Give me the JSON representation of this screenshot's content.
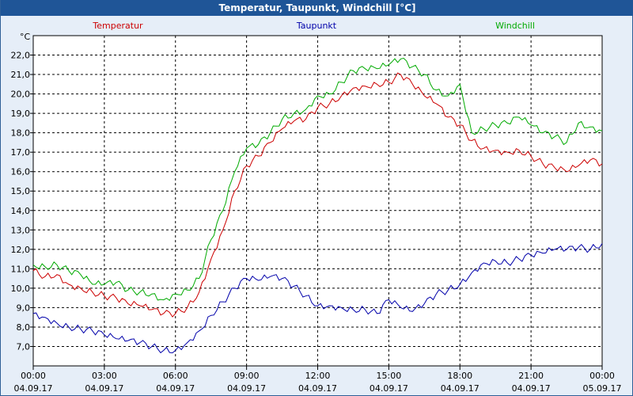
{
  "window": {
    "title": "Temperatur, Taupunkt, Windchill [°C]"
  },
  "chart_data": {
    "type": "line",
    "title": "Temperatur, Taupunkt, Windchill [°C]",
    "ylabel": "°C",
    "ylim": [
      6.0,
      23.0
    ],
    "yticks": [
      "7,0",
      "8,0",
      "9,0",
      "10,0",
      "11,0",
      "12,0",
      "13,0",
      "14,0",
      "15,0",
      "16,0",
      "17,0",
      "18,0",
      "19,0",
      "20,0",
      "21,0",
      "22,0"
    ],
    "xlim": [
      "2017-09-04 00:00",
      "2017-09-05 00:00"
    ],
    "xticks": [
      {
        "time": "00:00",
        "date": "04.09.17"
      },
      {
        "time": "03:00",
        "date": "04.09.17"
      },
      {
        "time": "06:00",
        "date": "04.09.17"
      },
      {
        "time": "09:00",
        "date": "04.09.17"
      },
      {
        "time": "12:00",
        "date": "04.09.17"
      },
      {
        "time": "15:00",
        "date": "04.09.17"
      },
      {
        "time": "18:00",
        "date": "04.09.17"
      },
      {
        "time": "21:00",
        "date": "04.09.17"
      },
      {
        "time": "00:00",
        "date": "05.09.17"
      }
    ],
    "grid": true,
    "legend_position": "top",
    "colors": {
      "Temperatur": "#cc0000",
      "Taupunkt": "#0000aa",
      "Windchill": "#00aa00"
    },
    "series": [
      {
        "name": "Temperatur",
        "color": "#cc0000",
        "points": [
          [
            "00:00",
            10.9
          ],
          [
            "00:30",
            10.6
          ],
          [
            "01:00",
            10.7
          ],
          [
            "01:30",
            10.2
          ],
          [
            "02:00",
            10.0
          ],
          [
            "02:30",
            9.8
          ],
          [
            "03:00",
            9.6
          ],
          [
            "03:30",
            9.5
          ],
          [
            "04:00",
            9.2
          ],
          [
            "04:30",
            9.1
          ],
          [
            "05:00",
            8.9
          ],
          [
            "05:30",
            8.7
          ],
          [
            "06:00",
            8.7
          ],
          [
            "06:30",
            9.0
          ],
          [
            "07:00",
            9.8
          ],
          [
            "07:30",
            11.5
          ],
          [
            "08:00",
            13.0
          ],
          [
            "08:30",
            15.0
          ],
          [
            "09:00",
            16.3
          ],
          [
            "09:30",
            16.8
          ],
          [
            "10:00",
            17.5
          ],
          [
            "10:30",
            18.2
          ],
          [
            "11:00",
            18.6
          ],
          [
            "11:30",
            18.7
          ],
          [
            "12:00",
            19.3
          ],
          [
            "12:30",
            19.5
          ],
          [
            "13:00",
            19.9
          ],
          [
            "13:30",
            20.3
          ],
          [
            "14:00",
            20.4
          ],
          [
            "14:30",
            20.5
          ],
          [
            "15:00",
            20.6
          ],
          [
            "15:30",
            21.0
          ],
          [
            "16:00",
            20.5
          ],
          [
            "16:30",
            19.9
          ],
          [
            "17:00",
            19.5
          ],
          [
            "17:30",
            18.8
          ],
          [
            "18:00",
            18.4
          ],
          [
            "18:30",
            17.6
          ],
          [
            "19:00",
            17.2
          ],
          [
            "19:30",
            17.1
          ],
          [
            "20:00",
            17.0
          ],
          [
            "20:30",
            17.1
          ],
          [
            "21:00",
            16.8
          ],
          [
            "21:30",
            16.4
          ],
          [
            "22:00",
            16.2
          ],
          [
            "22:30",
            16.0
          ],
          [
            "23:00",
            16.3
          ],
          [
            "23:30",
            16.6
          ],
          [
            "24:00",
            16.4
          ]
        ]
      },
      {
        "name": "Taupunkt",
        "color": "#0000aa",
        "points": [
          [
            "00:00",
            8.7
          ],
          [
            "00:30",
            8.5
          ],
          [
            "01:00",
            8.2
          ],
          [
            "01:30",
            8.0
          ],
          [
            "02:00",
            7.9
          ],
          [
            "02:30",
            7.8
          ],
          [
            "03:00",
            7.6
          ],
          [
            "03:30",
            7.4
          ],
          [
            "04:00",
            7.3
          ],
          [
            "04:30",
            7.2
          ],
          [
            "05:00",
            7.0
          ],
          [
            "05:30",
            6.8
          ],
          [
            "06:00",
            6.8
          ],
          [
            "06:30",
            7.2
          ],
          [
            "07:00",
            7.8
          ],
          [
            "07:30",
            8.6
          ],
          [
            "08:00",
            9.3
          ],
          [
            "08:30",
            10.0
          ],
          [
            "09:00",
            10.5
          ],
          [
            "09:30",
            10.4
          ],
          [
            "10:00",
            10.6
          ],
          [
            "10:30",
            10.5
          ],
          [
            "11:00",
            10.1
          ],
          [
            "11:30",
            9.6
          ],
          [
            "12:00",
            9.1
          ],
          [
            "12:30",
            9.1
          ],
          [
            "13:00",
            9.0
          ],
          [
            "13:30",
            8.9
          ],
          [
            "14:00",
            8.9
          ],
          [
            "14:30",
            8.7
          ],
          [
            "15:00",
            9.4
          ],
          [
            "15:30",
            9.0
          ],
          [
            "16:00",
            8.8
          ],
          [
            "16:30",
            9.2
          ],
          [
            "17:00",
            9.7
          ],
          [
            "17:30",
            9.9
          ],
          [
            "18:00",
            10.2
          ],
          [
            "18:30",
            10.8
          ],
          [
            "19:00",
            11.3
          ],
          [
            "19:30",
            11.4
          ],
          [
            "20:00",
            11.3
          ],
          [
            "20:30",
            11.5
          ],
          [
            "21:00",
            11.7
          ],
          [
            "21:30",
            11.8
          ],
          [
            "22:00",
            12.0
          ],
          [
            "22:30",
            12.0
          ],
          [
            "23:00",
            12.1
          ],
          [
            "23:30",
            12.0
          ],
          [
            "24:00",
            12.3
          ]
        ]
      },
      {
        "name": "Windchill",
        "color": "#00aa00",
        "points": [
          [
            "00:00",
            11.2
          ],
          [
            "00:30",
            11.1
          ],
          [
            "01:00",
            11.2
          ],
          [
            "01:30",
            10.9
          ],
          [
            "02:00",
            10.7
          ],
          [
            "02:30",
            10.2
          ],
          [
            "03:00",
            10.2
          ],
          [
            "03:30",
            10.3
          ],
          [
            "04:00",
            9.9
          ],
          [
            "04:30",
            9.8
          ],
          [
            "05:00",
            9.7
          ],
          [
            "05:30",
            9.4
          ],
          [
            "06:00",
            9.7
          ],
          [
            "06:30",
            9.9
          ],
          [
            "07:00",
            10.5
          ],
          [
            "07:30",
            12.5
          ],
          [
            "08:00",
            14.0
          ],
          [
            "08:30",
            16.0
          ],
          [
            "09:00",
            17.2
          ],
          [
            "09:30",
            17.4
          ],
          [
            "10:00",
            18.0
          ],
          [
            "10:30",
            18.7
          ],
          [
            "11:00",
            19.0
          ],
          [
            "11:30",
            19.2
          ],
          [
            "12:00",
            19.9
          ],
          [
            "12:30",
            20.0
          ],
          [
            "13:00",
            20.6
          ],
          [
            "13:30",
            21.2
          ],
          [
            "14:00",
            21.3
          ],
          [
            "14:30",
            21.3
          ],
          [
            "15:00",
            21.5
          ],
          [
            "15:30",
            21.8
          ],
          [
            "16:00",
            21.4
          ],
          [
            "16:30",
            21.0
          ],
          [
            "17:00",
            20.2
          ],
          [
            "17:30",
            19.9
          ],
          [
            "18:00",
            20.5
          ],
          [
            "18:30",
            18.0
          ],
          [
            "19:00",
            18.2
          ],
          [
            "19:30",
            18.4
          ],
          [
            "20:00",
            18.5
          ],
          [
            "20:30",
            18.8
          ],
          [
            "21:00",
            18.4
          ],
          [
            "21:30",
            18.0
          ],
          [
            "22:00",
            17.8
          ],
          [
            "22:30",
            17.5
          ],
          [
            "23:00",
            18.5
          ],
          [
            "23:30",
            18.3
          ],
          [
            "24:00",
            18.1
          ]
        ]
      }
    ]
  }
}
